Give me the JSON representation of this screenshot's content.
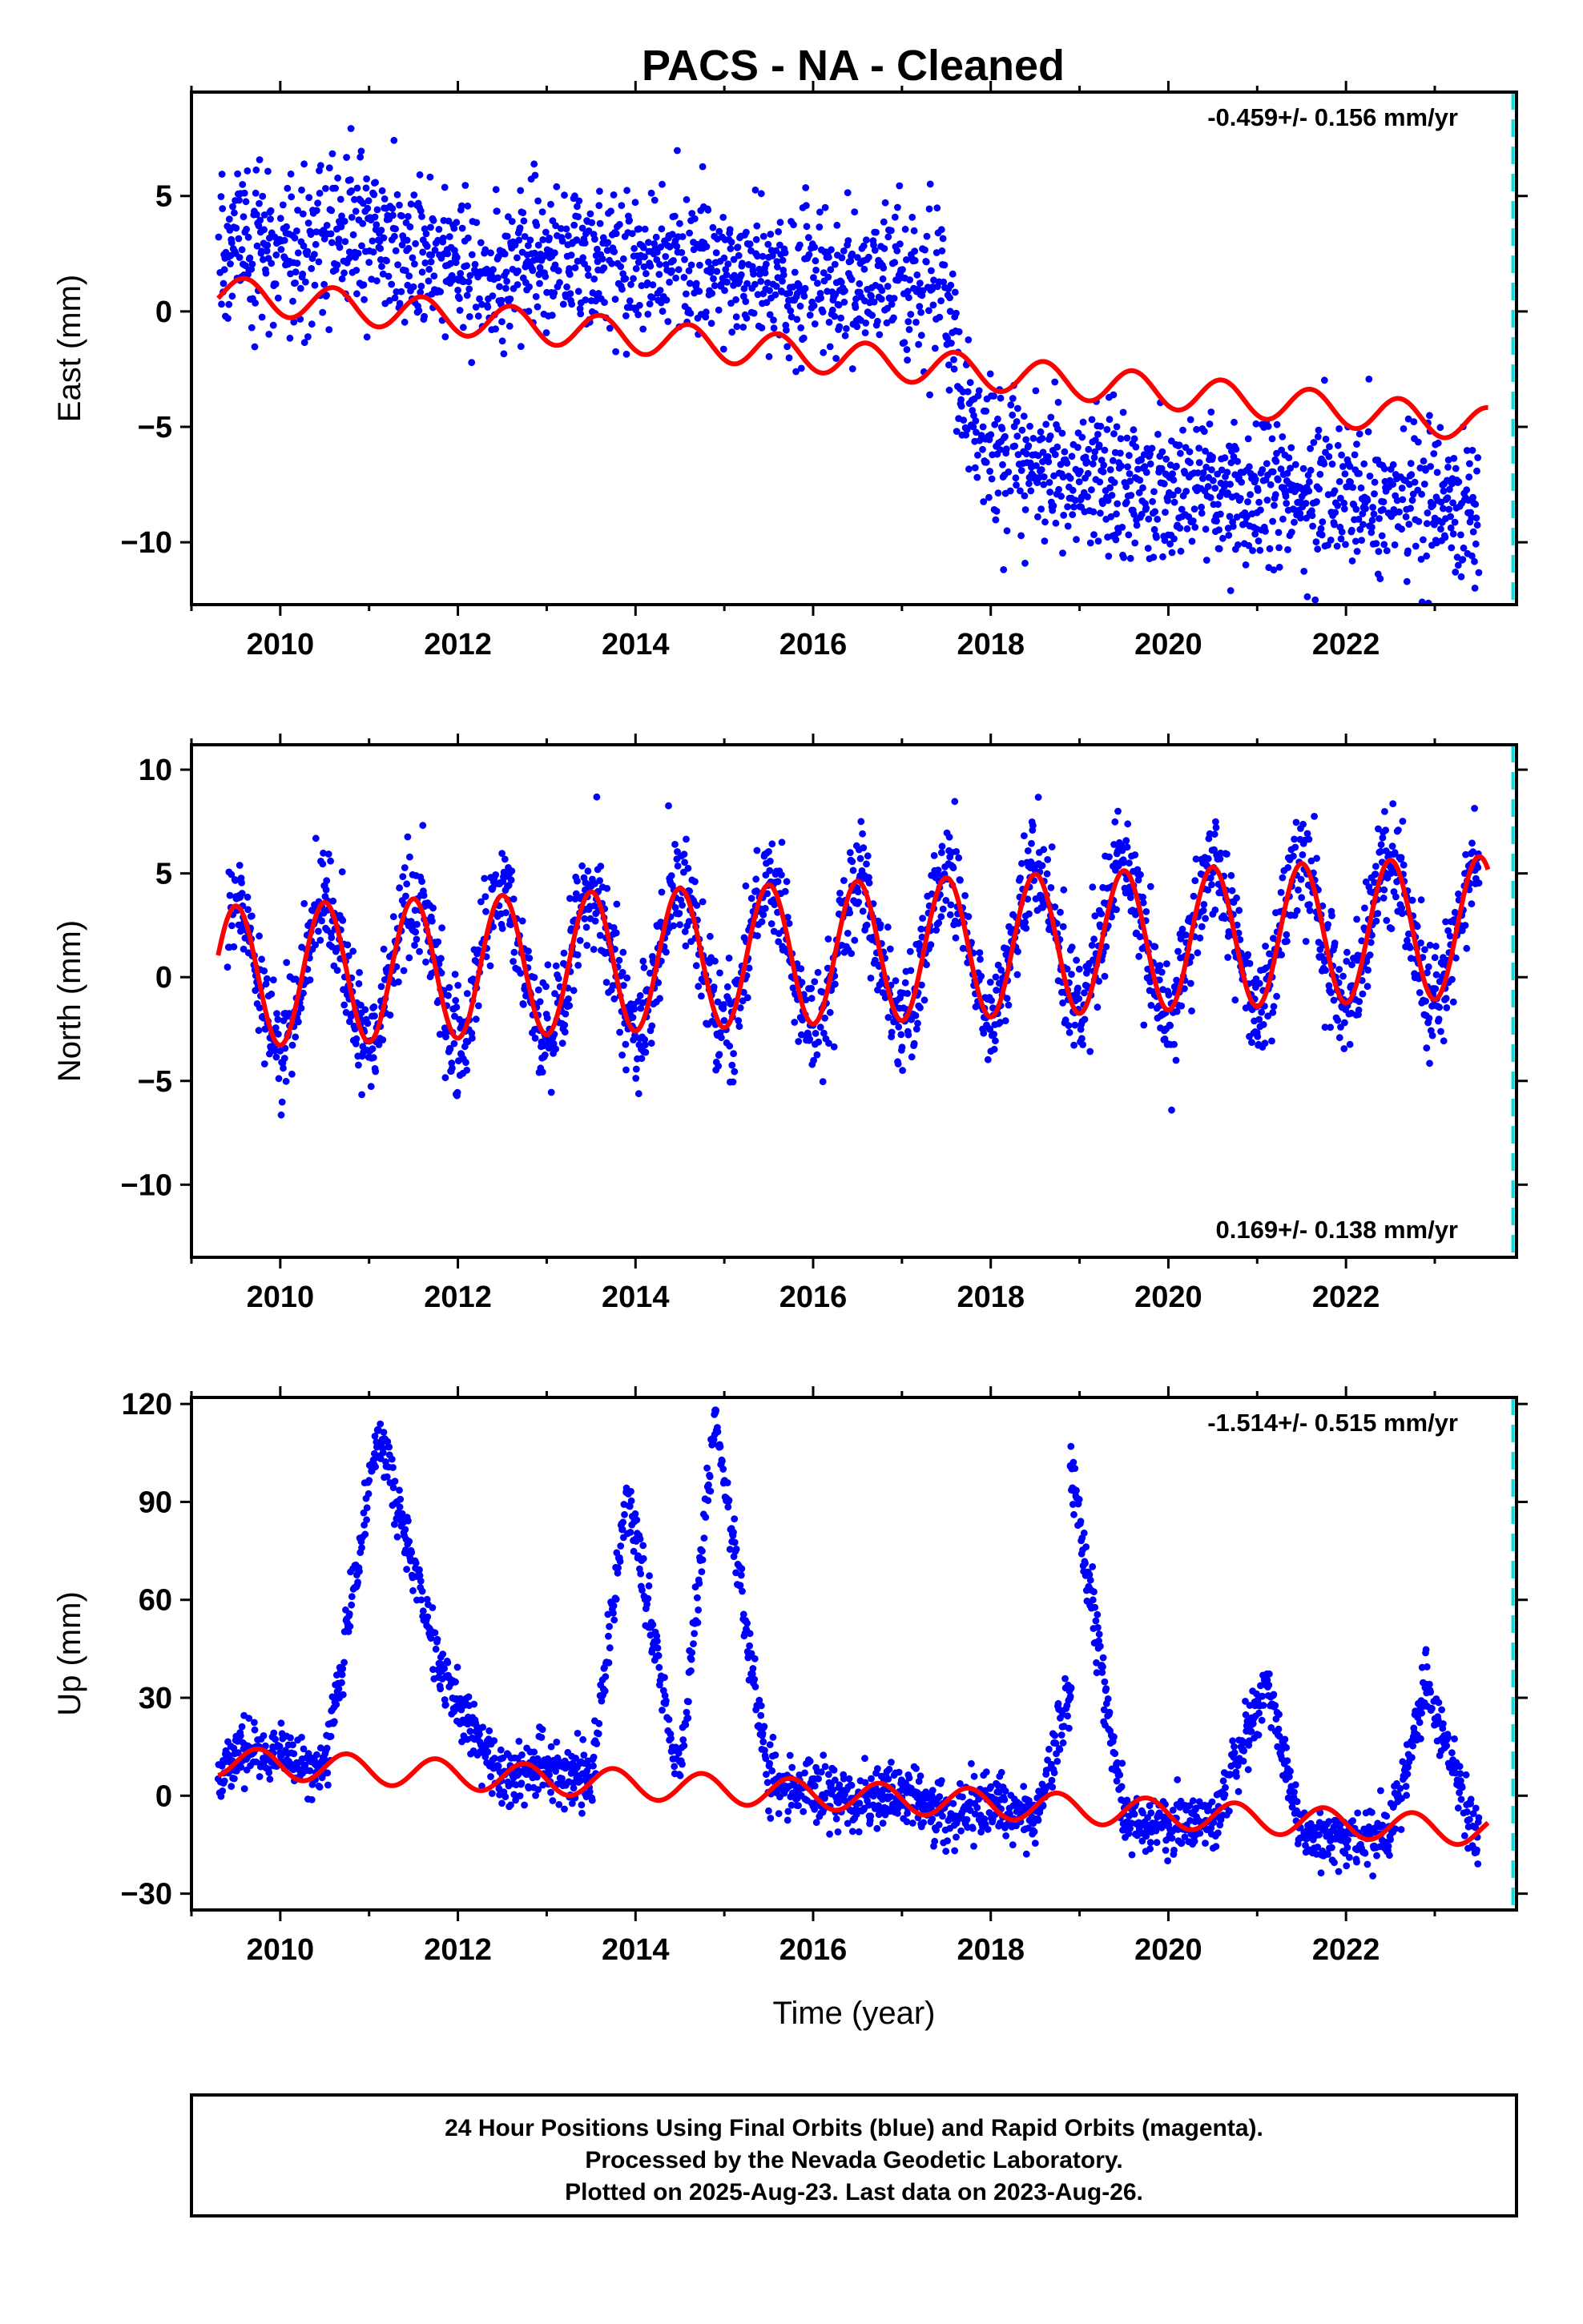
{
  "title": "PACS  - NA - Cleaned",
  "colors": {
    "data": "#0000ff",
    "model": "#ff0000",
    "last_data_marker": "#00e0e0",
    "frame": "#000000"
  },
  "chart_data": [
    {
      "type": "scatter",
      "component": "east",
      "ylabel": "East (mm)",
      "xlabel": "",
      "xlim": [
        2009.0,
        2023.92
      ],
      "ylim": [
        -12.7,
        9.5
      ],
      "xticks": [
        2010,
        2012,
        2014,
        2016,
        2018,
        2020,
        2022
      ],
      "yticks": [
        5,
        0,
        -5,
        -10
      ],
      "yticklabels": [
        "5",
        "0",
        "−5",
        "−10"
      ],
      "rate_label": "-0.459+/- 0.156 mm/yr",
      "rate_label_position": "top-right",
      "last_data_marker_x": 2023.88,
      "series": [
        {
          "kind": "points",
          "x": [
            2009.3,
            2009.6,
            2010.0,
            2010.5,
            2011.0,
            2011.5,
            2012.0,
            2012.5,
            2013.0,
            2013.5,
            2014.0,
            2014.5,
            2015.0,
            2015.5,
            2016.0,
            2016.5,
            2017.0,
            2017.5,
            2017.7,
            2018.0,
            2018.5,
            2019.0,
            2019.5,
            2020.0,
            2020.5,
            2021.0,
            2021.5,
            2022.0,
            2022.5,
            2023.0,
            2023.5
          ],
          "y": [
            2.5,
            3.0,
            2.6,
            3.0,
            3.5,
            2.5,
            2.0,
            1.8,
            2.5,
            2.2,
            2.0,
            2.3,
            2.1,
            1.5,
            1.0,
            1.2,
            1.5,
            1.0,
            -4.0,
            -5.5,
            -6.5,
            -7.5,
            -7.2,
            -7.8,
            -7.8,
            -8.0,
            -8.0,
            -8.0,
            -8.2,
            -8.3,
            -8.6
          ]
        },
        {
          "kind": "model",
          "name": "",
          "intercept_at_start": 0.8,
          "trend_mm_per_yr": -0.4,
          "annual_amplitude": 0.75,
          "annual_phase_peak": 0.6,
          "steps": [
            {
              "t": 2017.55,
              "offset": 0
            }
          ],
          "x_start": 2009.3,
          "x_end": 2023.6
        }
      ]
    },
    {
      "type": "scatter",
      "component": "north",
      "ylabel": "North (mm)",
      "xlabel": "",
      "xlim": [
        2009.0,
        2023.92
      ],
      "ylim": [
        -13.5,
        11.2
      ],
      "xticks": [
        2010,
        2012,
        2014,
        2016,
        2018,
        2020,
        2022
      ],
      "yticks": [
        10,
        5,
        0,
        -5,
        -10
      ],
      "yticklabels": [
        "10",
        "5",
        "0",
        "−5",
        "−10"
      ],
      "rate_label": "0.169+/- 0.138 mm/yr",
      "rate_label_position": "bottom-right",
      "last_data_marker_x": 2023.88,
      "series": [
        {
          "kind": "points",
          "x": [
            2009.4,
            2009.5,
            2009.95,
            2010.5,
            2010.95,
            2011.5,
            2012.0,
            2012.5,
            2012.95,
            2013.5,
            2014.0,
            2014.5,
            2015.0,
            2015.5,
            2016.0,
            2016.5,
            2017.0,
            2017.5,
            2018.0,
            2018.5,
            2019.0,
            2019.5,
            2020.0,
            2020.5,
            2021.0,
            2021.5,
            2022.0,
            2022.5,
            2023.0,
            2023.5
          ],
          "y": [
            3.0,
            3.3,
            -3.7,
            3.3,
            -3.5,
            3.5,
            -3.2,
            3.8,
            -3.0,
            4.0,
            -2.8,
            4.2,
            -2.7,
            4.3,
            -2.5,
            4.4,
            -2.4,
            4.6,
            -2.2,
            4.8,
            -2.0,
            5.0,
            -1.9,
            5.1,
            -1.7,
            5.3,
            -1.5,
            5.5,
            -1.3,
            5.7
          ]
        },
        {
          "kind": "model",
          "name": "",
          "intercept_at_start": 0.0,
          "trend_mm_per_yr": 0.17,
          "annual_amplitude": 3.4,
          "annual_phase_peak": 0.5,
          "steps": [],
          "x_start": 2009.3,
          "x_end": 2023.6
        }
      ]
    },
    {
      "type": "scatter",
      "component": "up",
      "ylabel": "Up (mm)",
      "xlabel": "Time (year)",
      "xlim": [
        2009.0,
        2023.92
      ],
      "ylim": [
        -35,
        122
      ],
      "xticks": [
        2010,
        2012,
        2014,
        2016,
        2018,
        2020,
        2022
      ],
      "yticks": [
        120,
        90,
        60,
        30,
        0,
        -30
      ],
      "yticklabels": [
        "120",
        "90",
        "60",
        "30",
        "0",
        "−30"
      ],
      "rate_label": "-1.514+/- 0.515 mm/yr",
      "rate_label_position": "top-right",
      "last_data_marker_x": 2023.88,
      "series": [
        {
          "kind": "points",
          "x": [
            2009.3,
            2009.7,
            2010.5,
            2011.1,
            2011.8,
            2012.5,
            2013.0,
            2013.5,
            2013.9,
            2014.5,
            2014.9,
            2015.5,
            2016.0,
            2016.5,
            2017.0,
            2017.5,
            2018.0,
            2018.5,
            2018.9,
            2018.9,
            2019.5,
            2020.0,
            2020.5,
            2021.1,
            2021.5,
            2022.0,
            2022.5,
            2022.9,
            2023.5
          ],
          "y": [
            7,
            14,
            8,
            112,
            38,
            5,
            10,
            3,
            93,
            5,
            118,
            4,
            2,
            -3,
            1,
            -6,
            -2,
            -8,
            33,
            101,
            -7,
            -10,
            -8,
            34,
            -12,
            -14,
            -10,
            34,
            -16
          ]
        },
        {
          "kind": "model",
          "name": "",
          "intercept_at_start": 10.5,
          "trend_mm_per_yr": -1.5,
          "annual_amplitude": 4.5,
          "annual_phase_peak": 0.75,
          "steps": [],
          "x_start": 2009.3,
          "x_end": 2023.6
        }
      ]
    }
  ],
  "footer": {
    "lines": [
      "24 Hour Positions Using Final Orbits (blue) and Rapid Orbits (magenta).",
      "Processed by the Nevada Geodetic Laboratory.",
      "Plotted on 2025-Aug-23. Last data on 2023-Aug-26."
    ]
  }
}
